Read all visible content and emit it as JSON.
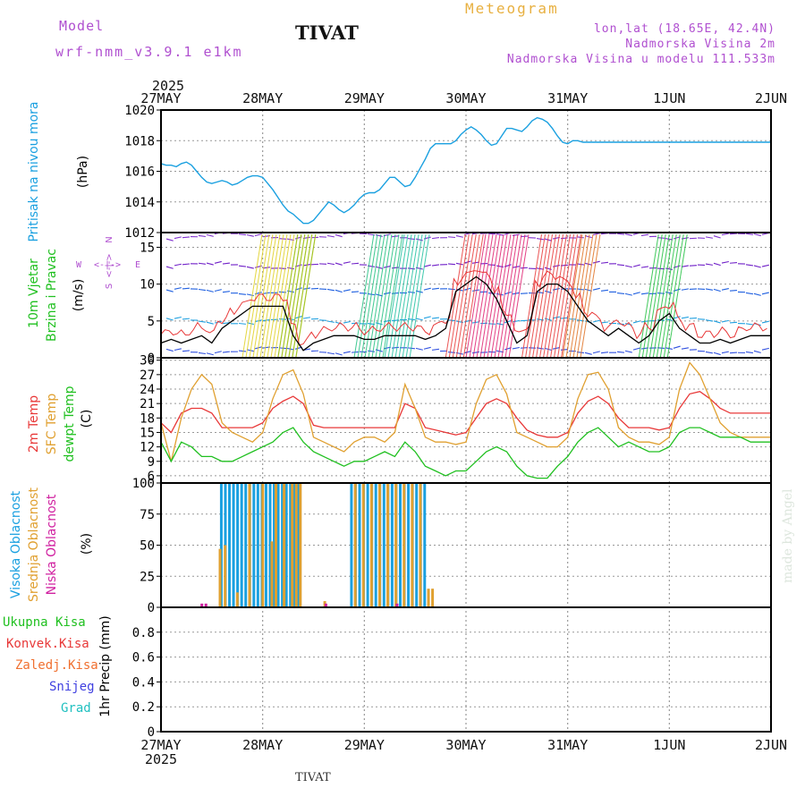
{
  "header": {
    "model_label": "Model",
    "model_version": "wrf-nmm_v3.9.1 e1km",
    "station": "TIVAT",
    "product": "Meteogram",
    "lonlat": "lon,lat (18.65E, 42.4N)",
    "elevation": "Nadmorska Visina 2m",
    "model_elevation": "Nadmorska Visina u modelu 111.533m"
  },
  "footer": {
    "station": "TIVAT",
    "credit": "made by Angel"
  },
  "colors": {
    "pressure": "#1aa0e0",
    "temp": "#e83838",
    "sfc": "#e0a030",
    "dew": "#20c020",
    "high_cloud": "#1aa0e0",
    "mid_cloud": "#e0a030",
    "low_cloud": "#d020a0",
    "title_purple": "#b050d0",
    "grid": "#999999"
  },
  "time_axis": {
    "year": "2025",
    "labels": [
      "27MAY",
      "28MAY",
      "29MAY",
      "30MAY",
      "31MAY",
      "1JUN",
      "2JUN"
    ]
  },
  "chart_data": [
    {
      "type": "line",
      "panel": "pressure",
      "ylabel_main": "Pritisak na nivou mora",
      "ylabel_unit": "(hPa)",
      "ylim": [
        1012,
        1020
      ],
      "yticks": [
        1012,
        1014,
        1016,
        1018,
        1020
      ],
      "grid": true,
      "series": [
        {
          "key": "mslp",
          "x": [
            0,
            0.05,
            0.1,
            0.15,
            0.2,
            0.25,
            0.3,
            0.35,
            0.4,
            0.45,
            0.5,
            0.55,
            0.6,
            0.65,
            0.7,
            0.75,
            0.8,
            0.85,
            0.9,
            0.95,
            1.0,
            1.05,
            1.1,
            1.15,
            1.2,
            1.25,
            1.3,
            1.35,
            1.4,
            1.45,
            1.5,
            1.55,
            1.6,
            1.65,
            1.7,
            1.75,
            1.8,
            1.85,
            1.9,
            1.95,
            2.0,
            2.05,
            2.1,
            2.15,
            2.2,
            2.25,
            2.3,
            2.35,
            2.4,
            2.45,
            2.5,
            2.55,
            2.6,
            2.65,
            2.7,
            2.75,
            2.8,
            2.85,
            2.9,
            2.95,
            3.0,
            3.05,
            3.1,
            3.15,
            3.2,
            3.25,
            3.3,
            3.35,
            3.4,
            3.45,
            3.5,
            3.55,
            3.6,
            3.65,
            3.7,
            3.75,
            3.8,
            3.85,
            3.9,
            3.95,
            4.0,
            4.05,
            4.1,
            4.15,
            4.2,
            4.25,
            4.3,
            4.35,
            4.4,
            4.45,
            4.5,
            4.55,
            4.6,
            4.65,
            4.7,
            4.75,
            4.8,
            4.85,
            4.9,
            4.95,
            5.0,
            5.05,
            5.1,
            5.15,
            5.2,
            5.25,
            5.3,
            5.35,
            5.4,
            5.45,
            5.5,
            5.55,
            5.6,
            5.65,
            5.7,
            5.75,
            5.8,
            5.85,
            5.9,
            5.95,
            6.0
          ],
          "values": [
            1016.5,
            1016.4,
            1016.4,
            1016.3,
            1016.5,
            1016.6,
            1016.4,
            1016.0,
            1015.6,
            1015.3,
            1015.2,
            1015.3,
            1015.4,
            1015.3,
            1015.1,
            1015.2,
            1015.4,
            1015.6,
            1015.7,
            1015.7,
            1015.6,
            1015.2,
            1014.8,
            1014.3,
            1013.8,
            1013.4,
            1013.2,
            1012.9,
            1012.6,
            1012.6,
            1012.8,
            1013.2,
            1013.6,
            1014.0,
            1013.8,
            1013.5,
            1013.3,
            1013.5,
            1013.8,
            1014.2,
            1014.5,
            1014.6,
            1014.6,
            1014.8,
            1015.2,
            1015.6,
            1015.6,
            1015.3,
            1015.0,
            1015.1,
            1015.6,
            1016.2,
            1016.8,
            1017.5,
            1017.8,
            1017.8,
            1017.8,
            1017.8,
            1018.0,
            1018.4,
            1018.7,
            1018.9,
            1018.7,
            1018.4,
            1018.0,
            1017.7,
            1017.8,
            1018.3,
            1018.8,
            1018.8,
            1018.7,
            1018.6,
            1018.9,
            1019.3,
            1019.5,
            1019.4,
            1019.2,
            1018.8,
            1018.3,
            1017.9,
            1017.8,
            1018.0,
            1018.0,
            1017.9,
            1017.9,
            1017.9,
            1017.9,
            1017.9,
            1017.9,
            1017.9,
            1017.9,
            1017.9,
            1017.9,
            1017.9,
            1017.9,
            1017.9,
            1017.9,
            1017.9,
            1017.9,
            1017.9,
            1017.9,
            1017.9,
            1017.9,
            1017.9,
            1017.9,
            1017.9,
            1017.9,
            1017.9,
            1017.9,
            1017.9,
            1017.9,
            1017.9,
            1017.9,
            1017.9,
            1017.9,
            1017.9,
            1017.9,
            1017.9,
            1017.9,
            1017.9,
            1017.9
          ]
        }
      ]
    },
    {
      "type": "line",
      "panel": "wind",
      "ylabel_main": "10m Vjetar",
      "ylabel_sub": "Brzina i Pravac",
      "ylabel_unit": "(m/s)",
      "compass": [
        "W",
        "<-|->",
        "E",
        "N",
        "<-|->",
        "S"
      ],
      "ylim": [
        0,
        17
      ],
      "yticks": [
        0,
        5,
        10,
        15
      ],
      "grid": true,
      "series": [
        {
          "key": "speed",
          "x": [
            0.0,
            0.1,
            0.2,
            0.3,
            0.4,
            0.5,
            0.6,
            0.7,
            0.8,
            0.9,
            1.0,
            1.1,
            1.2,
            1.3,
            1.4,
            1.5,
            1.6,
            1.7,
            1.8,
            1.9,
            2.0,
            2.1,
            2.2,
            2.3,
            2.4,
            2.5,
            2.6,
            2.7,
            2.8,
            2.9,
            3.0,
            3.1,
            3.2,
            3.3,
            3.4,
            3.5,
            3.6,
            3.7,
            3.8,
            3.9,
            4.0,
            4.1,
            4.2,
            4.3,
            4.4,
            4.5,
            4.6,
            4.7,
            4.8,
            4.9,
            5.0,
            5.1,
            5.2,
            5.3,
            5.4,
            5.5,
            5.6,
            5.7,
            5.8,
            5.9,
            6.0
          ],
          "values": [
            2,
            2.5,
            2,
            2.5,
            3,
            2,
            4,
            5,
            6,
            7,
            7,
            7,
            7,
            3,
            1,
            2,
            2.5,
            3,
            3,
            3,
            2.5,
            2.5,
            3,
            3,
            3,
            3,
            2.5,
            3,
            4,
            9,
            10,
            11,
            10,
            8,
            5,
            2,
            3,
            9,
            10,
            10,
            9,
            7,
            5,
            4,
            3,
            4,
            3,
            2,
            3,
            5,
            6,
            4,
            3,
            2,
            2,
            2.5,
            2,
            2.5,
            3,
            3,
            3
          ]
        }
      ]
    },
    {
      "type": "line",
      "panel": "temperature",
      "ylabel_lines": [
        "2m Temp",
        "SFC Temp",
        "dewpt Temp"
      ],
      "ylabel_unit": "(C)",
      "ylim": [
        4.5,
        30.5
      ],
      "yticks": [
        6,
        9,
        12,
        15,
        18,
        21,
        24,
        27,
        30
      ],
      "grid": true,
      "series": [
        {
          "key": "t2m",
          "x": [
            0.0,
            0.1,
            0.2,
            0.3,
            0.4,
            0.5,
            0.6,
            0.7,
            0.8,
            0.9,
            1.0,
            1.1,
            1.2,
            1.3,
            1.4,
            1.5,
            1.6,
            1.7,
            1.8,
            1.9,
            2.0,
            2.1,
            2.2,
            2.3,
            2.4,
            2.5,
            2.6,
            2.7,
            2.8,
            2.9,
            3.0,
            3.1,
            3.2,
            3.3,
            3.4,
            3.5,
            3.6,
            3.7,
            3.8,
            3.9,
            4.0,
            4.1,
            4.2,
            4.3,
            4.4,
            4.5,
            4.6,
            4.7,
            4.8,
            4.9,
            5.0,
            5.1,
            5.2,
            5.3,
            5.4,
            5.5,
            5.6,
            5.7,
            5.8,
            5.9,
            6.0
          ],
          "values": [
            17,
            15,
            19,
            20,
            20,
            19,
            16,
            16,
            16,
            16,
            17,
            20,
            21.5,
            22.5,
            21,
            16.5,
            16,
            16,
            16,
            16,
            16,
            16,
            16,
            16,
            21,
            20,
            16,
            15.5,
            15,
            14.5,
            15,
            18,
            21,
            22,
            21,
            18,
            15.5,
            14.5,
            14,
            14,
            15,
            19,
            21.5,
            22.5,
            21,
            18,
            16,
            16,
            16,
            15.5,
            16,
            20,
            23,
            23.5,
            22,
            20,
            19,
            19,
            19,
            19,
            19
          ]
        },
        {
          "key": "sfc",
          "x": [
            0.0,
            0.1,
            0.2,
            0.3,
            0.4,
            0.5,
            0.6,
            0.7,
            0.8,
            0.9,
            1.0,
            1.1,
            1.2,
            1.3,
            1.4,
            1.5,
            1.6,
            1.7,
            1.8,
            1.9,
            2.0,
            2.1,
            2.2,
            2.3,
            2.4,
            2.5,
            2.6,
            2.7,
            2.8,
            2.9,
            3.0,
            3.1,
            3.2,
            3.3,
            3.4,
            3.5,
            3.6,
            3.7,
            3.8,
            3.9,
            4.0,
            4.1,
            4.2,
            4.3,
            4.4,
            4.5,
            4.6,
            4.7,
            4.8,
            4.9,
            5.0,
            5.1,
            5.2,
            5.3,
            5.4,
            5.5,
            5.6,
            5.7,
            5.8,
            5.9,
            6.0
          ],
          "values": [
            17,
            9,
            18,
            24,
            27,
            25,
            17,
            15,
            14,
            13,
            15,
            22,
            27,
            28,
            23,
            14,
            13,
            12,
            11,
            13,
            14,
            14,
            13,
            15,
            25,
            20,
            14,
            13,
            13,
            12.5,
            13,
            21,
            26,
            27,
            23,
            15,
            14,
            13,
            12,
            12,
            14,
            22,
            27,
            27.5,
            24,
            16,
            14,
            13,
            13,
            12.5,
            14,
            24,
            29.5,
            27,
            22,
            17,
            15,
            14,
            14,
            14,
            14
          ]
        },
        {
          "key": "dew",
          "x": [
            0.0,
            0.1,
            0.2,
            0.3,
            0.4,
            0.5,
            0.6,
            0.7,
            0.8,
            0.9,
            1.0,
            1.1,
            1.2,
            1.3,
            1.4,
            1.5,
            1.6,
            1.7,
            1.8,
            1.9,
            2.0,
            2.1,
            2.2,
            2.3,
            2.4,
            2.5,
            2.6,
            2.7,
            2.8,
            2.9,
            3.0,
            3.1,
            3.2,
            3.3,
            3.4,
            3.5,
            3.6,
            3.7,
            3.8,
            3.9,
            4.0,
            4.1,
            4.2,
            4.3,
            4.4,
            4.5,
            4.6,
            4.7,
            4.8,
            4.9,
            5.0,
            5.1,
            5.2,
            5.3,
            5.4,
            5.5,
            5.6,
            5.7,
            5.8,
            5.9,
            6.0
          ],
          "values": [
            13,
            9,
            13,
            12,
            10,
            10,
            9,
            9,
            10,
            11,
            12,
            13,
            15,
            16,
            13,
            11,
            10,
            9,
            8,
            9,
            9,
            10,
            11,
            10,
            13,
            11,
            8,
            7,
            6,
            7,
            7,
            9,
            11,
            12,
            11,
            8,
            6,
            5.5,
            5.5,
            8,
            10,
            13,
            15,
            16,
            14,
            12,
            13,
            12,
            11,
            11,
            12,
            15,
            16,
            16,
            15,
            14,
            14,
            14,
            13,
            13,
            13
          ]
        }
      ]
    },
    {
      "type": "bar",
      "panel": "clouds",
      "ylabel_lines": [
        "Visoka Oblacnost",
        "Srednja Oblacnost",
        "Niska Oblacnost"
      ],
      "ylabel_unit": "(%)",
      "ylim": [
        0,
        100
      ],
      "yticks": [
        0,
        25,
        50,
        75,
        100
      ],
      "grid": true,
      "series": [
        {
          "key": "high",
          "x": [
            0.58,
            0.62,
            0.66,
            0.7,
            0.74,
            0.78,
            0.82,
            0.86,
            0.9,
            0.94,
            0.98,
            1.02,
            1.06,
            1.1,
            1.14,
            1.18,
            1.22,
            1.26,
            1.3,
            1.34,
            1.86,
            1.9,
            1.94,
            1.98,
            2.02,
            2.06,
            2.1,
            2.14,
            2.18,
            2.22,
            2.26,
            2.3,
            2.34,
            2.38,
            2.42,
            2.46,
            2.5,
            2.54,
            2.58
          ],
          "values": [
            100,
            100,
            100,
            100,
            100,
            100,
            100,
            100,
            100,
            100,
            100,
            100,
            100,
            100,
            100,
            100,
            100,
            100,
            100,
            100,
            100,
            100,
            100,
            100,
            100,
            100,
            100,
            100,
            100,
            100,
            100,
            100,
            100,
            100,
            100,
            100,
            100,
            100,
            100
          ]
        },
        {
          "key": "mid",
          "x": [
            0.55,
            0.6,
            0.72,
            0.84,
            0.97,
            1.06,
            1.1,
            1.18,
            1.26,
            1.3,
            1.34,
            1.58,
            1.88,
            1.96,
            2.04,
            2.12,
            2.2,
            2.28,
            2.36,
            2.44,
            2.52,
            2.6,
            2.64
          ],
          "values": [
            47,
            50,
            12,
            100,
            100,
            53,
            100,
            100,
            100,
            100,
            100,
            5,
            100,
            100,
            100,
            100,
            100,
            100,
            100,
            100,
            100,
            15,
            15
          ]
        },
        {
          "key": "low",
          "x": [
            0.38,
            0.42,
            1.6,
            2.3
          ],
          "values": [
            3,
            3,
            3,
            3
          ]
        }
      ]
    },
    {
      "type": "line",
      "panel": "precip",
      "ylabel_unit": "1hr Precip (mm)",
      "legend": [
        "Ukupna Kisa",
        "Konvek.Kisa",
        "Zaledj.Kisa",
        "Snijeg",
        "Grad"
      ],
      "ylim": [
        0,
        1
      ],
      "yticks": [
        0,
        0.2,
        0.4,
        0.6,
        0.8
      ],
      "grid": true,
      "series": [
        {
          "key": "total",
          "x": [
            0,
            6
          ],
          "values": [
            0,
            0
          ]
        }
      ]
    }
  ]
}
